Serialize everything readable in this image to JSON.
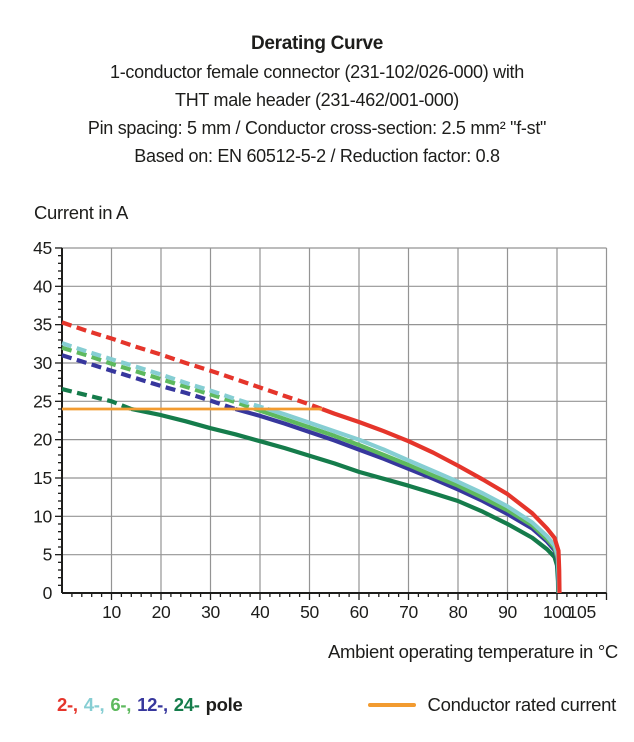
{
  "header": {
    "title": "Derating Curve",
    "subtitle_lines": [
      "1-conductor female connector (231-102/026-000) with",
      "THT male header (231-462/001-000)",
      "Pin spacing: 5 mm / Conductor cross-section: 2.5 mm² \"f-st\"",
      "Based on: EN 60512-5-2 / Reduction factor: 0.8"
    ]
  },
  "legend": {
    "poles": [
      {
        "label": "2-,",
        "color": "#e5352b"
      },
      {
        "label": "4-,",
        "color": "#86ced3"
      },
      {
        "label": "6-,",
        "color": "#5eb95e"
      },
      {
        "label": "12-,",
        "color": "#37379d"
      },
      {
        "label": "24-",
        "color": "#157c4b"
      }
    ],
    "pole_suffix": "pole",
    "rated_label": "Conductor rated current",
    "rated_color": "#f29b30"
  },
  "colors": {
    "grid": "#949494",
    "axis": "#1d1d1b",
    "text": "#1d1d1b",
    "background": "#ffffff"
  },
  "chart_data": {
    "type": "line",
    "title": "Derating Curve",
    "xlabel": "Ambient operating temperature in °C",
    "ylabel": "Current in A",
    "xlim": [
      0,
      110
    ],
    "ylim": [
      0,
      45
    ],
    "grid": true,
    "x_grid_step": 10,
    "y_grid_step": 5,
    "x_minor_step": 2,
    "y_minor_step": 1,
    "x_tick_labels": [
      10,
      20,
      30,
      40,
      50,
      60,
      70,
      80,
      90,
      100,
      105
    ],
    "y_tick_labels": [
      0,
      5,
      10,
      15,
      20,
      25,
      30,
      35,
      40,
      45
    ],
    "rated_current": {
      "value": 24,
      "x_start": 0,
      "x_end": 52.5,
      "label": "Conductor rated current",
      "color": "#f29b30"
    },
    "series": [
      {
        "name": "24-pole",
        "color": "#157c4b",
        "dash_until_temp": 14,
        "points": [
          [
            0,
            26.6
          ],
          [
            5,
            25.8
          ],
          [
            10,
            25.0
          ],
          [
            14,
            24.0
          ],
          [
            20,
            23.2
          ],
          [
            25,
            22.4
          ],
          [
            30,
            21.5
          ],
          [
            35,
            20.7
          ],
          [
            40,
            19.8
          ],
          [
            45,
            18.9
          ],
          [
            50,
            17.9
          ],
          [
            55,
            16.9
          ],
          [
            60,
            15.8
          ],
          [
            65,
            14.9
          ],
          [
            70,
            14.0
          ],
          [
            75,
            13.0
          ],
          [
            80,
            12.0
          ],
          [
            85,
            10.6
          ],
          [
            90,
            9.0
          ],
          [
            95,
            7.2
          ],
          [
            98,
            5.7
          ],
          [
            99.5,
            4.7
          ],
          [
            100,
            3.6
          ],
          [
            100.2,
            1.5
          ],
          [
            100.25,
            0
          ]
        ]
      },
      {
        "name": "12-pole",
        "color": "#37379d",
        "dash_until_temp": 35,
        "points": [
          [
            0,
            31.0
          ],
          [
            5,
            30.0
          ],
          [
            10,
            29.0
          ],
          [
            15,
            28.0
          ],
          [
            20,
            27.0
          ],
          [
            25,
            26.1
          ],
          [
            30,
            25.1
          ],
          [
            35,
            24.0
          ],
          [
            40,
            23.1
          ],
          [
            45,
            22.1
          ],
          [
            50,
            21.0
          ],
          [
            55,
            19.9
          ],
          [
            60,
            18.7
          ],
          [
            65,
            17.5
          ],
          [
            70,
            16.2
          ],
          [
            75,
            14.9
          ],
          [
            80,
            13.5
          ],
          [
            85,
            12.0
          ],
          [
            90,
            10.3
          ],
          [
            95,
            8.4
          ],
          [
            98,
            6.7
          ],
          [
            99.5,
            5.6
          ],
          [
            100.1,
            4.3
          ],
          [
            100.25,
            2.0
          ],
          [
            100.3,
            0
          ]
        ]
      },
      {
        "name": "6-pole",
        "color": "#5eb95e",
        "dash_until_temp": 39,
        "points": [
          [
            0,
            32.0
          ],
          [
            5,
            31.0
          ],
          [
            10,
            29.9
          ],
          [
            15,
            28.9
          ],
          [
            20,
            27.9
          ],
          [
            25,
            26.9
          ],
          [
            30,
            25.9
          ],
          [
            35,
            24.9
          ],
          [
            39,
            24.0
          ],
          [
            45,
            22.7
          ],
          [
            50,
            21.6
          ],
          [
            55,
            20.5
          ],
          [
            60,
            19.3
          ],
          [
            65,
            18.0
          ],
          [
            70,
            16.7
          ],
          [
            75,
            15.3
          ],
          [
            80,
            14.0
          ],
          [
            85,
            12.4
          ],
          [
            90,
            10.8
          ],
          [
            95,
            8.8
          ],
          [
            98,
            7.0
          ],
          [
            99.5,
            5.9
          ],
          [
            100.15,
            4.5
          ],
          [
            100.3,
            2.2
          ],
          [
            100.35,
            0
          ]
        ]
      },
      {
        "name": "4-pole",
        "color": "#86ced3",
        "dash_until_temp": 41.5,
        "points": [
          [
            0,
            32.6
          ],
          [
            5,
            31.5
          ],
          [
            10,
            30.5
          ],
          [
            15,
            29.5
          ],
          [
            20,
            28.5
          ],
          [
            25,
            27.4
          ],
          [
            30,
            26.4
          ],
          [
            35,
            25.3
          ],
          [
            40,
            24.3
          ],
          [
            41.5,
            24.0
          ],
          [
            45,
            23.3
          ],
          [
            50,
            22.2
          ],
          [
            55,
            21.1
          ],
          [
            60,
            20.0
          ],
          [
            65,
            18.7
          ],
          [
            70,
            17.3
          ],
          [
            75,
            15.9
          ],
          [
            80,
            14.5
          ],
          [
            85,
            13.0
          ],
          [
            90,
            11.3
          ],
          [
            95,
            9.2
          ],
          [
            98,
            7.4
          ],
          [
            99.5,
            6.2
          ],
          [
            100.2,
            4.8
          ],
          [
            100.35,
            2.5
          ],
          [
            100.4,
            0
          ]
        ]
      },
      {
        "name": "2-pole",
        "color": "#e5352b",
        "dash_until_temp": 52.5,
        "points": [
          [
            0,
            35.3
          ],
          [
            5,
            34.2
          ],
          [
            10,
            33.2
          ],
          [
            15,
            32.1
          ],
          [
            20,
            31.1
          ],
          [
            25,
            30.0
          ],
          [
            30,
            29.0
          ],
          [
            35,
            27.9
          ],
          [
            40,
            26.8
          ],
          [
            45,
            25.7
          ],
          [
            50,
            24.6
          ],
          [
            52.5,
            24.0
          ],
          [
            55,
            23.4
          ],
          [
            60,
            22.3
          ],
          [
            65,
            21.1
          ],
          [
            70,
            19.8
          ],
          [
            75,
            18.3
          ],
          [
            80,
            16.6
          ],
          [
            85,
            14.8
          ],
          [
            90,
            12.9
          ],
          [
            95,
            10.4
          ],
          [
            98,
            8.4
          ],
          [
            99.5,
            7.2
          ],
          [
            100.3,
            5.5
          ],
          [
            100.45,
            3.0
          ],
          [
            100.5,
            0
          ]
        ]
      }
    ]
  }
}
